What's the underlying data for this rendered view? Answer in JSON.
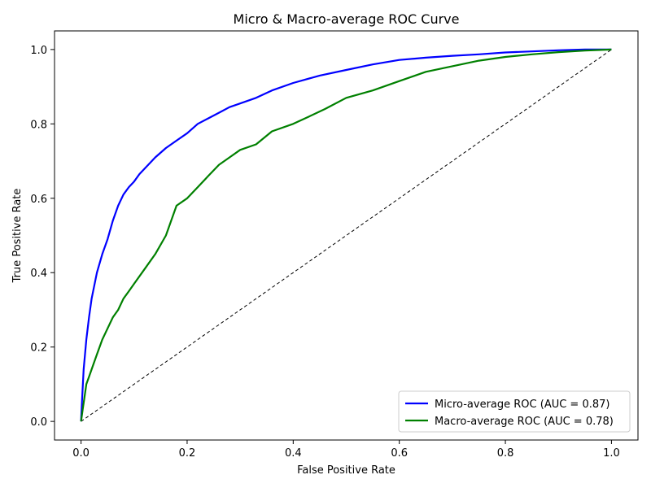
{
  "chart_data": {
    "type": "line",
    "title": "Micro & Macro-average ROC Curve",
    "xlabel": "False Positive Rate",
    "ylabel": "True Positive Rate",
    "xlim": [
      -0.05,
      1.05
    ],
    "ylim": [
      -0.05,
      1.05
    ],
    "x_ticks": [
      0.0,
      0.2,
      0.4,
      0.6,
      0.8,
      1.0
    ],
    "x_tick_labels": [
      "0.0",
      "0.2",
      "0.4",
      "0.6",
      "0.8",
      "1.0"
    ],
    "y_ticks": [
      0.0,
      0.2,
      0.4,
      0.6,
      0.8,
      1.0
    ],
    "y_tick_labels": [
      "0.0",
      "0.2",
      "0.4",
      "0.6",
      "0.8",
      "1.0"
    ],
    "grid": false,
    "legend": {
      "position": "bottom-right"
    },
    "series": [
      {
        "name": "Micro-average ROC (AUC = 0.87)",
        "color": "#0000ff",
        "style": "solid",
        "x": [
          0.0,
          0.002,
          0.005,
          0.01,
          0.015,
          0.02,
          0.03,
          0.04,
          0.05,
          0.06,
          0.07,
          0.08,
          0.09,
          0.1,
          0.11,
          0.12,
          0.14,
          0.16,
          0.18,
          0.2,
          0.22,
          0.24,
          0.26,
          0.28,
          0.3,
          0.33,
          0.36,
          0.4,
          0.45,
          0.5,
          0.55,
          0.6,
          0.65,
          0.7,
          0.75,
          0.8,
          0.85,
          0.9,
          0.95,
          1.0
        ],
        "y": [
          0.0,
          0.06,
          0.14,
          0.22,
          0.28,
          0.33,
          0.4,
          0.45,
          0.49,
          0.54,
          0.58,
          0.61,
          0.63,
          0.645,
          0.665,
          0.68,
          0.71,
          0.735,
          0.755,
          0.775,
          0.8,
          0.815,
          0.83,
          0.845,
          0.855,
          0.87,
          0.89,
          0.91,
          0.93,
          0.945,
          0.96,
          0.972,
          0.978,
          0.983,
          0.987,
          0.992,
          0.995,
          0.998,
          1.0,
          1.0
        ]
      },
      {
        "name": "Macro-average ROC (AUC = 0.78)",
        "color": "#008000",
        "style": "solid",
        "x": [
          0.0,
          0.003,
          0.006,
          0.01,
          0.015,
          0.02,
          0.03,
          0.04,
          0.05,
          0.06,
          0.07,
          0.08,
          0.09,
          0.1,
          0.12,
          0.14,
          0.16,
          0.18,
          0.2,
          0.22,
          0.24,
          0.26,
          0.28,
          0.3,
          0.33,
          0.36,
          0.4,
          0.43,
          0.46,
          0.5,
          0.55,
          0.6,
          0.65,
          0.7,
          0.75,
          0.8,
          0.85,
          0.9,
          0.95,
          1.0
        ],
        "y": [
          0.0,
          0.03,
          0.06,
          0.1,
          0.12,
          0.14,
          0.18,
          0.22,
          0.25,
          0.28,
          0.3,
          0.33,
          0.35,
          0.37,
          0.41,
          0.45,
          0.5,
          0.58,
          0.6,
          0.63,
          0.66,
          0.69,
          0.71,
          0.73,
          0.745,
          0.78,
          0.8,
          0.82,
          0.84,
          0.87,
          0.89,
          0.915,
          0.94,
          0.955,
          0.97,
          0.98,
          0.987,
          0.993,
          0.997,
          1.0
        ]
      },
      {
        "name": "",
        "color": "#000000",
        "style": "dashed",
        "x": [
          0.0,
          1.0
        ],
        "y": [
          0.0,
          1.0
        ]
      }
    ]
  }
}
